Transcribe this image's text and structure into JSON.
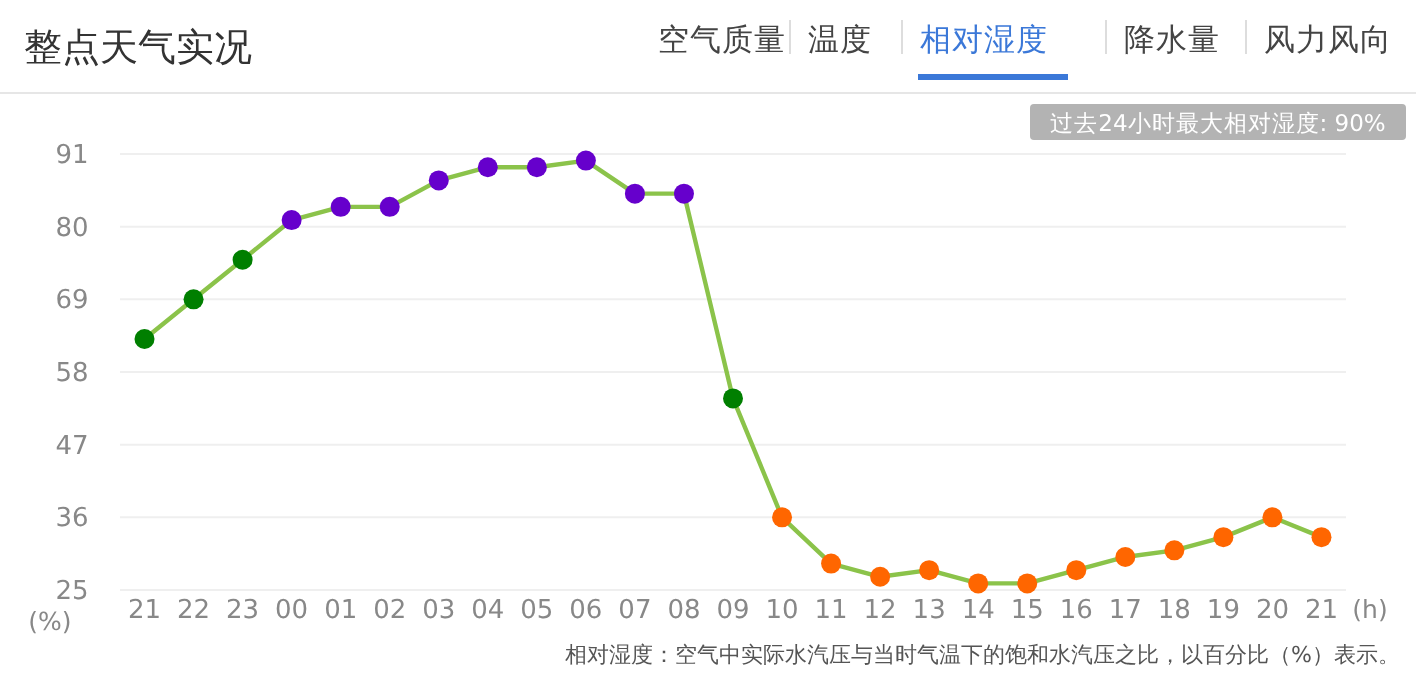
{
  "chart_data": {
    "type": "line",
    "title": "整点天气实况",
    "annotations": [
      "空气质量",
      "温度",
      "相对湿度",
      "降水量",
      "风力风向",
      "过去24小时最大相对湿度: 90%",
      "相对湿度：空气中实际水汽压与当时气温下的饱和水汽压之比，以百分比（%）表示。"
    ],
    "categories": [
      "21",
      "22",
      "23",
      "00",
      "01",
      "02",
      "03",
      "04",
      "05",
      "06",
      "07",
      "08",
      "09",
      "10",
      "11",
      "12",
      "13",
      "14",
      "15",
      "16",
      "17",
      "18",
      "19",
      "20",
      "21"
    ],
    "series": [
      {
        "color": "#8bc34a",
        "values": [
          63,
          69,
          75,
          81,
          83,
          83,
          87,
          89,
          89,
          90,
          85,
          85,
          54,
          36,
          29,
          27,
          28,
          26,
          26,
          28,
          30,
          31,
          33,
          36,
          33
        ],
        "colors": [
          "#007f00",
          "#007f00",
          "#007f00",
          "#6600cc",
          "#6600cc",
          "#6600cc",
          "#6600cc",
          "#6600cc",
          "#6600cc",
          "#6600cc",
          "#6600cc",
          "#6600cc",
          "#007f00",
          "#ff6600",
          "#ff6600",
          "#ff6600",
          "#ff6600",
          "#ff6600",
          "#ff6600",
          "#ff6600",
          "#ff6600",
          "#ff6600",
          "#ff6600",
          "#ff6600",
          "#ff6600"
        ]
      }
    ],
    "ylim": [
      25,
      91
    ],
    "yticks": [
      25,
      36,
      47,
      58,
      69,
      80,
      91
    ],
    "xlabel": "(h)",
    "ylabel": "(%)",
    "grid": "y",
    "marker": "circle",
    "line_style": "solid"
  }
}
